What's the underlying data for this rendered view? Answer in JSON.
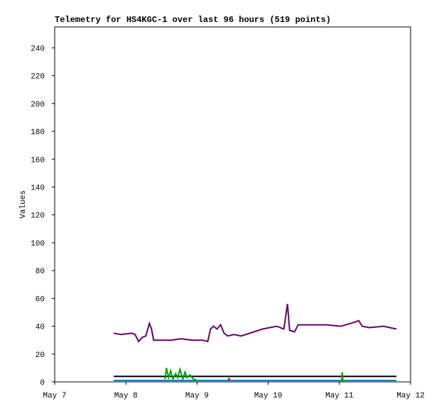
{
  "chart_data": {
    "type": "line",
    "title": "Telemetry for HS4KGC-1 over last 96 hours (519 points)",
    "y_label": "Values",
    "xlim": [
      7,
      12
    ],
    "xticks": [
      {
        "value": 7,
        "label": "May 7"
      },
      {
        "value": 8,
        "label": "May 8"
      },
      {
        "value": 9,
        "label": "May 9"
      },
      {
        "value": 10,
        "label": "May 10"
      },
      {
        "value": 11,
        "label": "May 11"
      },
      {
        "value": 12,
        "label": "May 12"
      }
    ],
    "ylim": [
      0,
      255
    ],
    "yticks": [
      0,
      20,
      40,
      60,
      80,
      100,
      120,
      140,
      160,
      180,
      200,
      220,
      240
    ],
    "series": [
      {
        "color": "#6a006a",
        "x": [
          7.83,
          7.93,
          8.08,
          8.13,
          8.18,
          8.23,
          8.28,
          8.33,
          8.36,
          8.39,
          8.48,
          8.63,
          8.78,
          8.93,
          9.08,
          9.15,
          9.19,
          9.23,
          9.28,
          9.33,
          9.38,
          9.43,
          9.52,
          9.62,
          9.92,
          10.12,
          10.22,
          10.27,
          10.3,
          10.37,
          10.42,
          10.62,
          10.82,
          11.02,
          11.22,
          11.27,
          11.32,
          11.42,
          11.62,
          11.8
        ],
        "values": [
          35,
          34,
          35,
          34,
          29,
          32,
          33,
          42,
          38,
          30,
          30,
          30,
          31,
          30,
          30,
          29,
          38,
          40,
          38,
          41,
          35,
          33,
          34,
          33,
          38,
          40,
          38,
          56,
          37,
          36,
          41,
          41,
          41,
          40,
          43,
          44,
          40,
          39,
          40,
          38
        ]
      },
      {
        "color": "#000000",
        "x": [
          7.83,
          11.8
        ],
        "values": [
          4,
          4
        ]
      },
      {
        "color": "#0080c0",
        "x": [
          7.83,
          11.8
        ],
        "values": [
          1,
          1
        ]
      },
      {
        "color": "#00a000",
        "x": [
          8.55,
          8.57,
          8.6,
          8.63,
          8.66,
          8.7,
          8.73,
          8.76,
          8.8,
          8.83,
          8.86,
          8.9,
          8.95,
          9.0,
          9.05,
          11.03,
          11.04,
          11.05
        ],
        "values": [
          2,
          10,
          3,
          8,
          2,
          6,
          3,
          9,
          2,
          7,
          3,
          5,
          2,
          1,
          null,
          0,
          7,
          0
        ]
      },
      {
        "color": "#ff0000",
        "x": [
          9.45
        ],
        "values": [
          2
        ]
      }
    ]
  }
}
